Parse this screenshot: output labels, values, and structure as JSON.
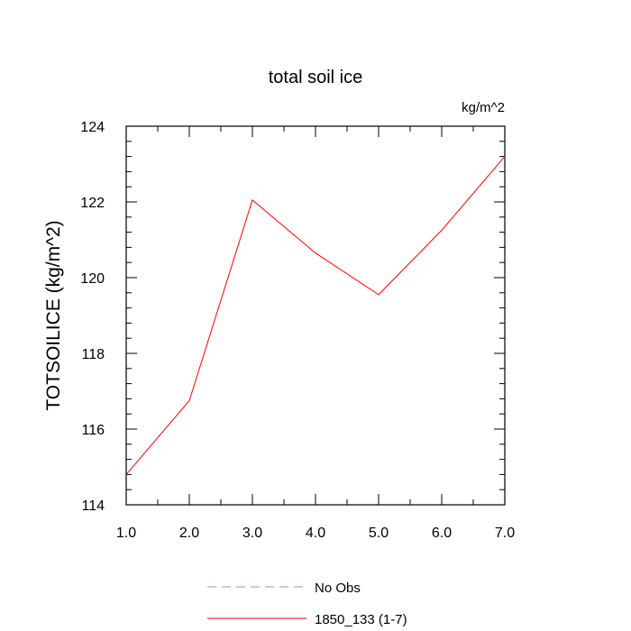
{
  "chart_data": {
    "type": "line",
    "title": "total soil ice",
    "units_label": "kg/m^2",
    "ylabel": "TOTSOILICE  (kg/m^2)",
    "xlabel": "",
    "xlim": [
      1,
      7
    ],
    "ylim": [
      114,
      124
    ],
    "x_ticks": [
      "1.0",
      "2.0",
      "3.0",
      "4.0",
      "5.0",
      "6.0",
      "7.0"
    ],
    "y_ticks": [
      "114",
      "116",
      "118",
      "120",
      "122",
      "124"
    ],
    "series": [
      {
        "name": "1850_133 (1-7)",
        "color": "#ff0000",
        "style": "solid",
        "x": [
          1,
          2,
          3,
          4,
          5,
          6,
          7
        ],
        "values": [
          114.8,
          116.75,
          122.05,
          120.65,
          119.55,
          121.25,
          123.2
        ]
      }
    ],
    "legend": [
      {
        "label": "No Obs",
        "color": "#8f8fe0",
        "style": "dashed"
      },
      {
        "label": "1850_133 (1-7)",
        "color": "#ff0000",
        "style": "solid"
      }
    ],
    "legend_position": "bottom",
    "grid": false
  }
}
